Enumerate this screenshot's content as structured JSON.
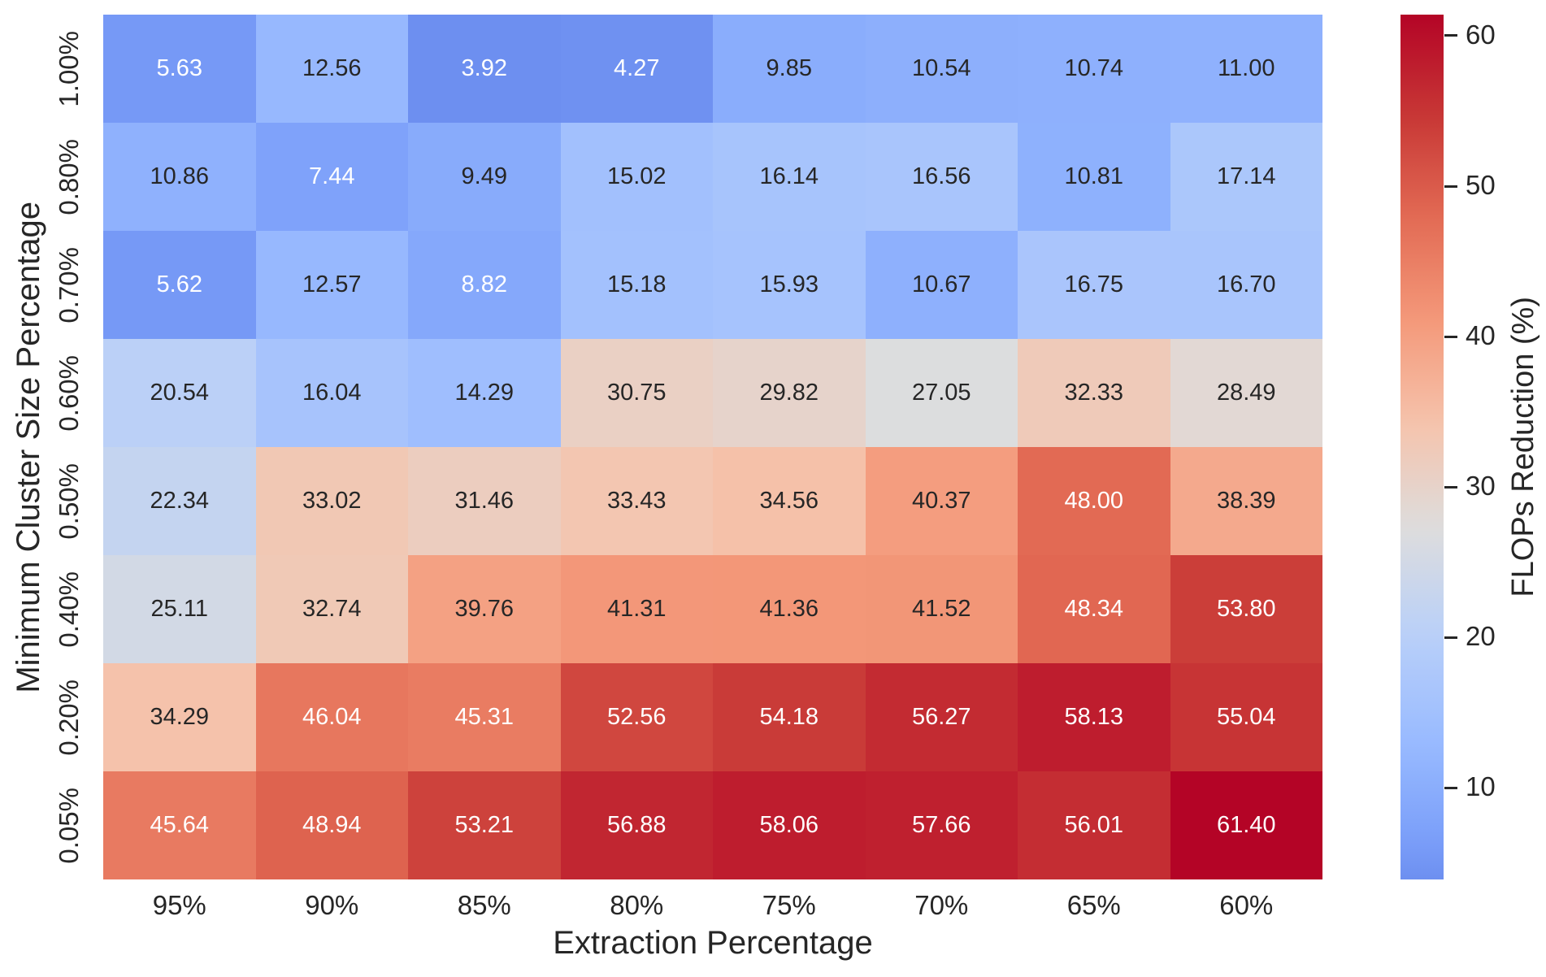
{
  "figure": {
    "background": "#ffffff",
    "axis_text_color": "#262626"
  },
  "chart_data": {
    "type": "heatmap",
    "title": "",
    "xlabel": "Extraction Percentage",
    "ylabel": "Minimum Cluster Size Percentage",
    "x_categories": [
      "95%",
      "90%",
      "85%",
      "80%",
      "75%",
      "70%",
      "65%",
      "60%"
    ],
    "y_categories": [
      "1.00%",
      "0.80%",
      "0.70%",
      "0.60%",
      "0.50%",
      "0.40%",
      "0.20%",
      "0.05%"
    ],
    "values": [
      [
        5.63,
        12.56,
        3.92,
        4.27,
        9.85,
        10.54,
        10.74,
        11.0
      ],
      [
        10.86,
        7.44,
        9.49,
        15.02,
        16.14,
        16.56,
        10.81,
        17.14
      ],
      [
        5.62,
        12.57,
        8.82,
        15.18,
        15.93,
        10.67,
        16.75,
        16.7
      ],
      [
        20.54,
        16.04,
        14.29,
        30.75,
        29.82,
        27.05,
        32.33,
        28.49
      ],
      [
        22.34,
        33.02,
        31.46,
        33.43,
        34.56,
        40.37,
        48.0,
        38.39
      ],
      [
        25.11,
        32.74,
        39.76,
        41.31,
        41.36,
        41.52,
        48.34,
        53.8
      ],
      [
        34.29,
        46.04,
        45.31,
        52.56,
        54.18,
        56.27,
        58.13,
        55.04
      ],
      [
        45.64,
        48.94,
        53.21,
        56.88,
        58.06,
        57.66,
        56.01,
        61.4
      ]
    ],
    "value_format_decimals": 2,
    "vmin": 3.92,
    "vmax": 61.4,
    "grid": false,
    "colorbar": {
      "label": "FLOPs Reduction (%)",
      "ticks": [
        10,
        20,
        30,
        40,
        50,
        60
      ],
      "position": "right"
    },
    "colormap": {
      "name": "coolwarm",
      "anchors": [
        "#3b4cc0",
        "#5977e3",
        "#7b9ff9",
        "#9bbcff",
        "#bad0f8",
        "#dddddd",
        "#f5c4ad",
        "#f49a7b",
        "#e36c55",
        "#c83836",
        "#b40426"
      ],
      "slice_start": 0.16,
      "slice_end": 1.0
    },
    "annotation_colors": {
      "on_dark": "#ffffff",
      "on_light": "#262626"
    },
    "luminance_threshold": 0.408
  }
}
